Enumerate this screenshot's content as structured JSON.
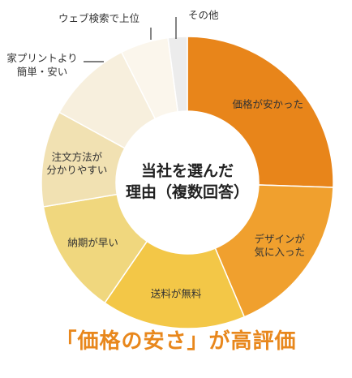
{
  "chart_data": {
    "type": "pie",
    "variant": "donut",
    "center_title_lines": [
      "当社を選んだ",
      "理由（複数回答）"
    ],
    "slices": [
      {
        "label_lines": [
          "価格が安かった"
        ],
        "value": 24,
        "color": "#e8851a"
      },
      {
        "label_lines": [
          "デザインが",
          "気に入った"
        ],
        "value": 17,
        "color": "#f0a02e"
      },
      {
        "label_lines": [
          "送料が無料"
        ],
        "value": 15,
        "color": "#f3c747"
      },
      {
        "label_lines": [
          "納期が早い"
        ],
        "value": 12,
        "color": "#f0d77e"
      },
      {
        "label_lines": [
          "注文方法が",
          "分かりやすい"
        ],
        "value": 10,
        "color": "#f1e1b2"
      },
      {
        "label_lines": [
          "家プリントより",
          "簡単・安い"
        ],
        "value": 9,
        "color": "#f7efdd"
      },
      {
        "label_lines": [
          "ウェブ検索で上位"
        ],
        "value": 5,
        "color": "#fbf6ec"
      },
      {
        "label_lines": [
          "その他"
        ],
        "value": 2,
        "color": "#ececec"
      }
    ]
  },
  "headline": "「価格の安さ」が高評価"
}
